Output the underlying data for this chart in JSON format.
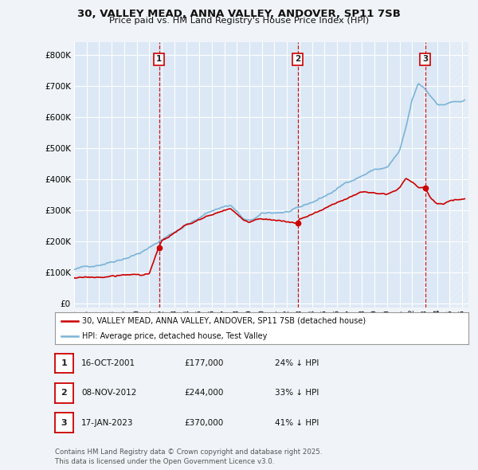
{
  "title_line1": "30, VALLEY MEAD, ANNA VALLEY, ANDOVER, SP11 7SB",
  "title_line2": "Price paid vs. HM Land Registry's House Price Index (HPI)",
  "bg_color": "#f0f4f8",
  "plot_bg_color": "#dce8f5",
  "grid_color": "#ffffff",
  "yticks": [
    0,
    100000,
    200000,
    300000,
    400000,
    500000,
    600000,
    700000,
    800000
  ],
  "ylim": [
    -15000,
    840000
  ],
  "xlim_start": 1995.25,
  "xlim_end": 2026.5,
  "sale_dates": [
    2001.79,
    2012.85,
    2023.04
  ],
  "sale_prices": [
    177000,
    244000,
    370000
  ],
  "sale_labels": [
    "1",
    "2",
    "3"
  ],
  "sale_info": [
    {
      "label": "1",
      "date": "16-OCT-2001",
      "price": "£177,000",
      "pct": "24% ↓ HPI"
    },
    {
      "label": "2",
      "date": "08-NOV-2012",
      "price": "£244,000",
      "pct": "33% ↓ HPI"
    },
    {
      "label": "3",
      "date": "17-JAN-2023",
      "price": "£370,000",
      "pct": "41% ↓ HPI"
    }
  ],
  "legend_line1": "30, VALLEY MEAD, ANNA VALLEY, ANDOVER, SP11 7SB (detached house)",
  "legend_line2": "HPI: Average price, detached house, Test Valley",
  "footnote": "Contains HM Land Registry data © Crown copyright and database right 2025.\nThis data is licensed under the Open Government Licence v3.0.",
  "hpi_color": "#7ab4d8",
  "sold_color": "#cc0000",
  "vline_color": "#cc0000",
  "hpi_alpha": 1.0,
  "sold_lw": 1.2,
  "hpi_lw": 1.2,
  "hpi_key_years": [
    1995,
    1996,
    1997,
    1998,
    1999,
    2000,
    2001,
    2002,
    2003,
    2004,
    2005,
    2006,
    2007,
    2007.5,
    2008,
    2008.5,
    2009,
    2009.5,
    2010,
    2011,
    2012,
    2013,
    2014,
    2015,
    2016,
    2017,
    2018,
    2019,
    2020,
    2021,
    2021.5,
    2022,
    2022.5,
    2023,
    2023.5,
    2024,
    2024.5,
    2025,
    2026.2
  ],
  "hpi_key_vals": [
    108000,
    115000,
    126000,
    140000,
    155000,
    170000,
    188000,
    215000,
    240000,
    268000,
    285000,
    310000,
    325000,
    330000,
    310000,
    285000,
    275000,
    285000,
    295000,
    298000,
    302000,
    308000,
    325000,
    345000,
    368000,
    395000,
    415000,
    435000,
    440000,
    490000,
    560000,
    650000,
    700000,
    685000,
    660000,
    640000,
    635000,
    645000,
    645000
  ],
  "sold_key_years": [
    1995,
    1996,
    1997,
    1998,
    1999,
    2000,
    2001,
    2001.79,
    2002,
    2003,
    2004,
    2005,
    2006,
    2007,
    2007.5,
    2008,
    2008.5,
    2009,
    2009.5,
    2010,
    2011,
    2012,
    2012.85,
    2013,
    2014,
    2015,
    2016,
    2017,
    2018,
    2019,
    2020,
    2021,
    2021.5,
    2022,
    2022.5,
    2023.04,
    2023.5,
    2024,
    2024.5,
    2025,
    2026.2
  ],
  "sold_key_vals": [
    82000,
    80000,
    82000,
    85000,
    88000,
    90000,
    93000,
    177000,
    195000,
    218000,
    240000,
    258000,
    272000,
    290000,
    295000,
    275000,
    255000,
    247000,
    255000,
    260000,
    258000,
    250000,
    244000,
    258000,
    272000,
    290000,
    308000,
    330000,
    345000,
    350000,
    350000,
    368000,
    400000,
    390000,
    370000,
    370000,
    335000,
    318000,
    320000,
    332000,
    340000
  ]
}
